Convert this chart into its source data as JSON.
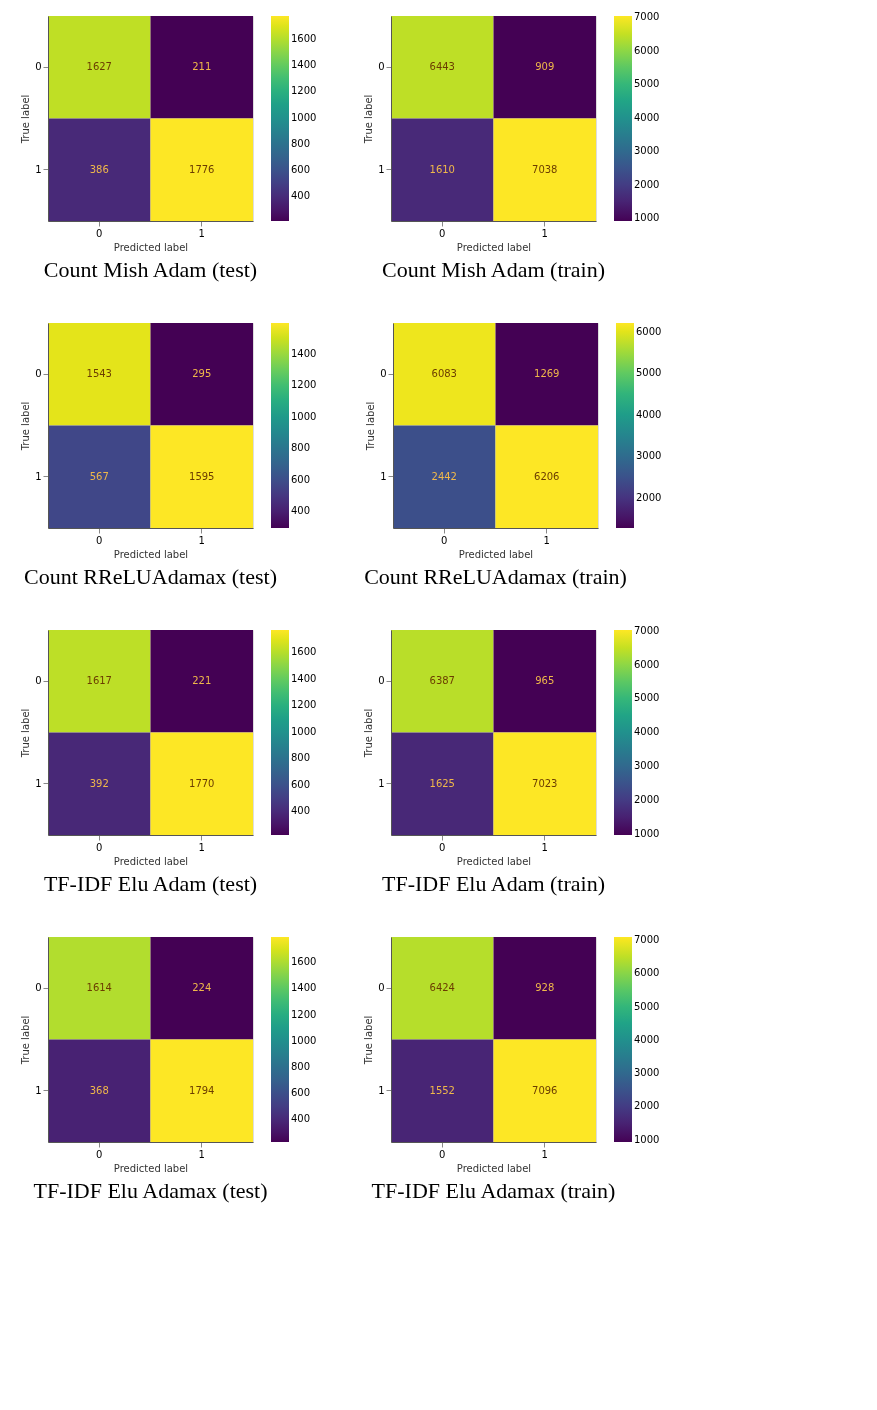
{
  "chart_data": [
    {
      "type": "heatmap",
      "title": "Count Mish Adam (test)",
      "xlabel": "Predicted label",
      "ylabel": "True label",
      "categories": [
        "0",
        "1"
      ],
      "y_categories": [
        "0",
        "1"
      ],
      "cells": [
        [
          1627,
          211
        ],
        [
          386,
          1776
        ]
      ],
      "clim": [
        211,
        1776
      ],
      "cticks": [
        400,
        600,
        800,
        1000,
        1200,
        1400,
        1600
      ],
      "data_labels": true
    },
    {
      "type": "heatmap",
      "title": "Count Mish Adam (train)",
      "xlabel": "Predicted label",
      "ylabel": "True label",
      "categories": [
        "0",
        "1"
      ],
      "y_categories": [
        "0",
        "1"
      ],
      "cells": [
        [
          6443,
          909
        ],
        [
          1610,
          7038
        ]
      ],
      "clim": [
        909,
        7038
      ],
      "cticks": [
        1000,
        2000,
        3000,
        4000,
        5000,
        6000,
        7000
      ],
      "data_labels": true
    },
    {
      "type": "heatmap",
      "title": "Count RReLUAdamax (test)",
      "xlabel": "Predicted label",
      "ylabel": "True label",
      "categories": [
        "0",
        "1"
      ],
      "y_categories": [
        "0",
        "1"
      ],
      "cells": [
        [
          1543,
          295
        ],
        [
          567,
          1595
        ]
      ],
      "clim": [
        295,
        1595
      ],
      "cticks": [
        400,
        600,
        800,
        1000,
        1200,
        1400
      ],
      "data_labels": true
    },
    {
      "type": "heatmap",
      "title": "Count RReLUAdamax (train)",
      "xlabel": "Predicted label",
      "ylabel": "True label",
      "categories": [
        "0",
        "1"
      ],
      "y_categories": [
        "0",
        "1"
      ],
      "cells": [
        [
          6083,
          1269
        ],
        [
          2442,
          6206
        ]
      ],
      "clim": [
        1269,
        6206
      ],
      "cticks": [
        2000,
        3000,
        4000,
        5000,
        6000
      ],
      "data_labels": true
    },
    {
      "type": "heatmap",
      "title": "TF-IDF Elu Adam (test)",
      "xlabel": "Predicted label",
      "ylabel": "True label",
      "categories": [
        "0",
        "1"
      ],
      "y_categories": [
        "0",
        "1"
      ],
      "cells": [
        [
          1617,
          221
        ],
        [
          392,
          1770
        ]
      ],
      "clim": [
        221,
        1770
      ],
      "cticks": [
        400,
        600,
        800,
        1000,
        1200,
        1400,
        1600
      ],
      "data_labels": true
    },
    {
      "type": "heatmap",
      "title": "TF-IDF Elu Adam (train)",
      "xlabel": "Predicted label",
      "ylabel": "True label",
      "categories": [
        "0",
        "1"
      ],
      "y_categories": [
        "0",
        "1"
      ],
      "cells": [
        [
          6387,
          965
        ],
        [
          1625,
          7023
        ]
      ],
      "clim": [
        965,
        7023
      ],
      "cticks": [
        1000,
        2000,
        3000,
        4000,
        5000,
        6000,
        7000
      ],
      "data_labels": true
    },
    {
      "type": "heatmap",
      "title": "TF-IDF Elu Adamax (test)",
      "xlabel": "Predicted label",
      "ylabel": "True label",
      "categories": [
        "0",
        "1"
      ],
      "y_categories": [
        "0",
        "1"
      ],
      "cells": [
        [
          1614,
          224
        ],
        [
          368,
          1794
        ]
      ],
      "clim": [
        224,
        1794
      ],
      "cticks": [
        400,
        600,
        800,
        1000,
        1200,
        1400,
        1600
      ],
      "data_labels": true
    },
    {
      "type": "heatmap",
      "title": "TF-IDF Elu Adamax (train)",
      "xlabel": "Predicted label",
      "ylabel": "True label",
      "categories": [
        "0",
        "1"
      ],
      "y_categories": [
        "0",
        "1"
      ],
      "cells": [
        [
          6424,
          928
        ],
        [
          1552,
          7096
        ]
      ],
      "clim": [
        928,
        7096
      ],
      "cticks": [
        1000,
        2000,
        3000,
        4000,
        5000,
        6000,
        7000
      ],
      "data_labels": true
    }
  ]
}
